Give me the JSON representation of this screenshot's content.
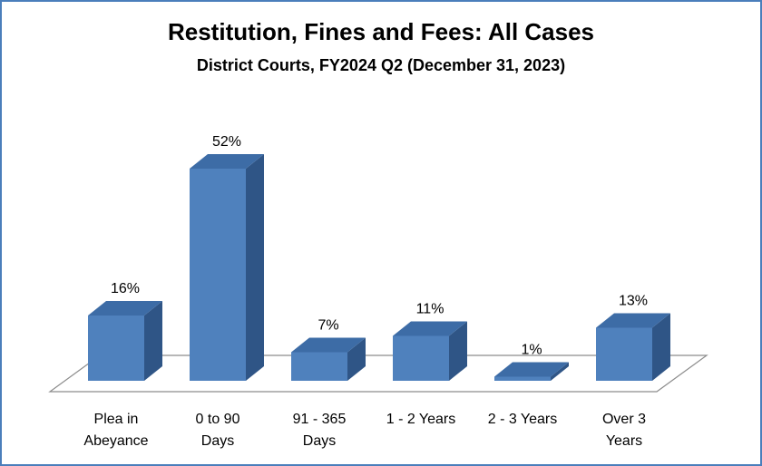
{
  "chart_data": {
    "type": "bar",
    "style": "3d",
    "title": "Restitution, Fines and Fees: All Cases",
    "subtitle": "District Courts, FY2024 Q2 (December 31, 2023)",
    "categories": [
      [
        "Plea in",
        "Abeyance"
      ],
      [
        "0 to 90",
        "Days"
      ],
      [
        "91 - 365",
        "Days"
      ],
      [
        "1 - 2 Years"
      ],
      [
        "2 - 3 Years"
      ],
      [
        "Over 3",
        "Years"
      ]
    ],
    "values": [
      16,
      52,
      7,
      11,
      1,
      13
    ],
    "data_labels": [
      "16%",
      "52%",
      "7%",
      "11%",
      "1%",
      "13%"
    ],
    "unit": "%",
    "grid": false,
    "legend": "none",
    "colors": {
      "front": "#4f81bd",
      "top": "#3d6ca6",
      "side": "#2f5586",
      "border": "#4a7ebb"
    }
  }
}
